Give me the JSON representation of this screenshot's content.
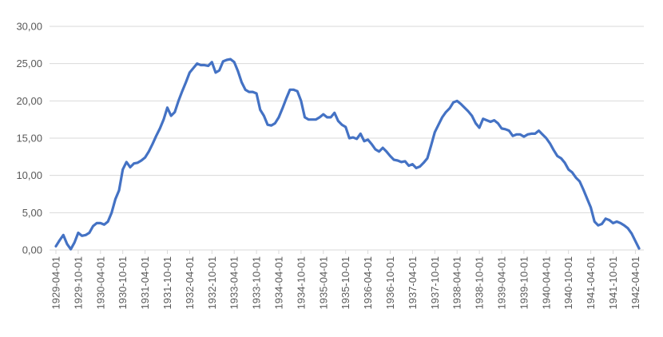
{
  "chart_data": {
    "type": "line",
    "x": [
      "1929-04-01",
      "1929-05-01",
      "1929-06-01",
      "1929-07-01",
      "1929-08-01",
      "1929-09-01",
      "1929-10-01",
      "1929-11-01",
      "1929-12-01",
      "1930-01-01",
      "1930-02-01",
      "1930-03-01",
      "1930-04-01",
      "1930-05-01",
      "1930-06-01",
      "1930-07-01",
      "1930-08-01",
      "1930-09-01",
      "1930-10-01",
      "1930-11-01",
      "1930-12-01",
      "1931-01-01",
      "1931-02-01",
      "1931-03-01",
      "1931-04-01",
      "1931-05-01",
      "1931-06-01",
      "1931-07-01",
      "1931-08-01",
      "1931-09-01",
      "1931-10-01",
      "1931-11-01",
      "1931-12-01",
      "1932-01-01",
      "1932-02-01",
      "1932-03-01",
      "1932-04-01",
      "1932-05-01",
      "1932-06-01",
      "1932-07-01",
      "1932-08-01",
      "1932-09-01",
      "1932-10-01",
      "1932-11-01",
      "1932-12-01",
      "1933-01-01",
      "1933-02-01",
      "1933-03-01",
      "1933-04-01",
      "1933-05-01",
      "1933-06-01",
      "1933-07-01",
      "1933-08-01",
      "1933-09-01",
      "1933-10-01",
      "1933-11-01",
      "1933-12-01",
      "1934-01-01",
      "1934-02-01",
      "1934-03-01",
      "1934-04-01",
      "1934-05-01",
      "1934-06-01",
      "1934-07-01",
      "1934-08-01",
      "1934-09-01",
      "1934-10-01",
      "1934-11-01",
      "1934-12-01",
      "1935-01-01",
      "1935-02-01",
      "1935-03-01",
      "1935-04-01",
      "1935-05-01",
      "1935-06-01",
      "1935-07-01",
      "1935-08-01",
      "1935-09-01",
      "1935-10-01",
      "1935-11-01",
      "1935-12-01",
      "1936-01-01",
      "1936-02-01",
      "1936-03-01",
      "1936-04-01",
      "1936-05-01",
      "1936-06-01",
      "1936-07-01",
      "1936-08-01",
      "1936-09-01",
      "1936-10-01",
      "1936-11-01",
      "1936-12-01",
      "1937-01-01",
      "1937-02-01",
      "1937-03-01",
      "1937-04-01",
      "1937-05-01",
      "1937-06-01",
      "1937-07-01",
      "1937-08-01",
      "1937-09-01",
      "1937-10-01",
      "1937-11-01",
      "1937-12-01",
      "1938-01-01",
      "1938-02-01",
      "1938-03-01",
      "1938-04-01",
      "1938-05-01",
      "1938-06-01",
      "1938-07-01",
      "1938-08-01",
      "1938-09-01",
      "1938-10-01",
      "1938-11-01",
      "1938-12-01",
      "1939-01-01",
      "1939-02-01",
      "1939-03-01",
      "1939-04-01",
      "1939-05-01",
      "1939-06-01",
      "1939-07-01",
      "1939-08-01",
      "1939-09-01",
      "1939-10-01",
      "1939-11-01",
      "1939-12-01",
      "1940-01-01",
      "1940-02-01",
      "1940-03-01",
      "1940-04-01",
      "1940-05-01",
      "1940-06-01",
      "1940-07-01",
      "1940-08-01",
      "1940-09-01",
      "1940-10-01",
      "1940-11-01",
      "1940-12-01",
      "1941-01-01",
      "1941-02-01",
      "1941-03-01",
      "1941-04-01",
      "1941-05-01",
      "1941-06-01",
      "1941-07-01",
      "1941-08-01",
      "1941-09-01",
      "1941-10-01",
      "1941-11-01",
      "1941-12-01",
      "1942-01-01",
      "1942-02-01",
      "1942-03-01",
      "1942-04-01",
      "1942-05-01"
    ],
    "values": [
      0.5,
      1.3,
      2.0,
      0.8,
      0.1,
      1.0,
      2.3,
      1.9,
      2.0,
      2.3,
      3.2,
      3.6,
      3.6,
      3.4,
      3.8,
      5.0,
      6.8,
      8.0,
      10.8,
      11.8,
      11.1,
      11.6,
      11.7,
      12.0,
      12.4,
      13.2,
      14.2,
      15.3,
      16.3,
      17.5,
      19.1,
      18.0,
      18.5,
      20.0,
      21.3,
      22.5,
      23.8,
      24.4,
      25.0,
      24.8,
      24.8,
      24.7,
      25.2,
      23.8,
      24.1,
      25.3,
      25.5,
      25.6,
      25.2,
      24.0,
      22.5,
      21.5,
      21.2,
      21.2,
      21.0,
      18.8,
      18.0,
      16.8,
      16.7,
      17.0,
      17.8,
      19.0,
      20.3,
      21.5,
      21.5,
      21.3,
      20.0,
      17.8,
      17.5,
      17.5,
      17.5,
      17.8,
      18.2,
      17.8,
      17.8,
      18.4,
      17.3,
      16.8,
      16.5,
      15.0,
      15.1,
      14.9,
      15.6,
      14.6,
      14.8,
      14.2,
      13.5,
      13.2,
      13.7,
      13.2,
      12.6,
      12.1,
      12.0,
      11.8,
      11.9,
      11.3,
      11.5,
      11.0,
      11.2,
      11.7,
      12.3,
      14.0,
      15.8,
      16.8,
      17.8,
      18.5,
      19.0,
      19.8,
      20.0,
      19.6,
      19.1,
      18.6,
      18.0,
      17.0,
      16.4,
      17.6,
      17.4,
      17.2,
      17.4,
      17.0,
      16.3,
      16.2,
      16.0,
      15.3,
      15.5,
      15.5,
      15.2,
      15.5,
      15.6,
      15.6,
      16.0,
      15.5,
      15.0,
      14.3,
      13.4,
      12.6,
      12.3,
      11.7,
      10.8,
      10.4,
      9.7,
      9.2,
      8.1,
      6.9,
      5.7,
      3.8,
      3.3,
      3.5,
      4.2,
      4.0,
      3.6,
      3.8,
      3.6,
      3.3,
      2.9,
      2.2,
      1.2,
      0.2
    ],
    "color": "#4472c4",
    "xticks": [
      "1929-04-01",
      "1929-10-01",
      "1930-04-01",
      "1930-10-01",
      "1931-04-01",
      "1931-10-01",
      "1932-04-01",
      "1932-10-01",
      "1933-04-01",
      "1933-10-01",
      "1934-04-01",
      "1934-10-01",
      "1935-04-01",
      "1935-10-01",
      "1936-04-01",
      "1936-10-01",
      "1937-04-01",
      "1937-10-01",
      "1938-04-01",
      "1938-10-01",
      "1939-04-01",
      "1939-10-01",
      "1940-04-01",
      "1940-10-01",
      "1941-04-01",
      "1941-10-01",
      "1942-04-01"
    ],
    "ylim": [
      0,
      30
    ],
    "yticks": [
      {
        "value": 0,
        "label": "0,00"
      },
      {
        "value": 5,
        "label": "5,00"
      },
      {
        "value": 10,
        "label": "10,00"
      },
      {
        "value": 15,
        "label": "15,00"
      },
      {
        "value": 20,
        "label": "20,00"
      },
      {
        "value": 25,
        "label": "25,00"
      },
      {
        "value": 30,
        "label": "30,00"
      }
    ],
    "grid": true
  }
}
